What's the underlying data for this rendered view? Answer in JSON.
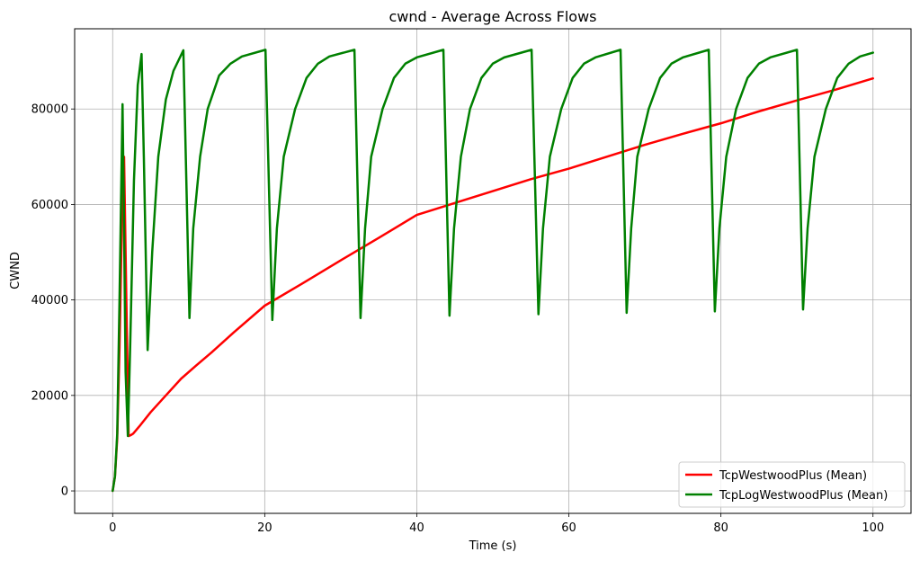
{
  "chart_data": {
    "type": "line",
    "title": "cwnd - Average Across Flows",
    "xlabel": "Time (s)",
    "ylabel": "CWND",
    "xlim": [
      -5,
      105
    ],
    "ylim": [
      -4700,
      96800
    ],
    "grid": true,
    "legend_position": "lower-right",
    "x_ticks": [
      0,
      20,
      40,
      60,
      80,
      100
    ],
    "x_tick_labels": [
      "0",
      "20",
      "40",
      "60",
      "80",
      "100"
    ],
    "y_ticks": [
      0,
      20000,
      40000,
      60000,
      80000
    ],
    "y_tick_labels": [
      "0",
      "20000",
      "40000",
      "60000",
      "80000"
    ],
    "series": [
      {
        "name": "TcpWestwoodPlus (Mean)",
        "color": "#ff0000",
        "x": [
          0,
          0.3,
          0.6,
          0.9,
          1.2,
          1.5,
          1.8,
          2.1,
          2.4,
          2.7,
          3.5,
          5,
          7,
          9,
          11,
          13,
          16,
          20,
          25,
          30,
          35,
          40,
          45,
          50,
          55,
          60,
          65,
          70,
          75,
          80,
          85,
          90,
          95,
          100
        ],
        "y": [
          0,
          3000,
          11000,
          30000,
          55000,
          70000,
          40000,
          11500,
          11700,
          12000,
          13500,
          16500,
          20000,
          23500,
          26300,
          29000,
          33300,
          38800,
          43500,
          48300,
          53000,
          57800,
          60300,
          62800,
          65300,
          67500,
          70000,
          72500,
          74800,
          77000,
          79500,
          81800,
          84000,
          86400
        ]
      },
      {
        "name": "TcpLogWestwoodPlus (Mean)",
        "color": "#008000",
        "x": [
          0,
          0.3,
          0.6,
          0.9,
          1.3,
          1.5,
          1.7,
          2,
          2.3,
          2.8,
          3.3,
          3.8,
          4.1,
          4.6,
          5.2,
          6,
          7,
          8,
          9.3,
          10.1,
          10.6,
          11.5,
          12.5,
          14,
          15.5,
          17,
          20.1,
          21,
          21.6,
          22.5,
          24,
          25.5,
          27,
          28.5,
          31.8,
          32.6,
          33.2,
          34,
          35.5,
          37,
          38.5,
          40,
          43.5,
          44.3,
          44.9,
          45.8,
          47,
          48.5,
          50,
          51.5,
          55.1,
          56,
          56.6,
          57.5,
          59,
          60.5,
          62,
          63.5,
          66.8,
          67.6,
          68.2,
          69,
          70.5,
          72,
          73.5,
          75,
          78.4,
          79.2,
          79.8,
          80.7,
          82,
          83.5,
          85,
          86.5,
          90,
          90.8,
          91.4,
          92.3,
          93.8,
          95.3,
          96.8,
          98.3,
          100
        ],
        "y": [
          0,
          3000,
          12000,
          40000,
          81000,
          55000,
          25000,
          11500,
          30000,
          65000,
          85000,
          91500,
          70000,
          29500,
          50000,
          70000,
          82000,
          88000,
          92300,
          36200,
          55000,
          70000,
          80000,
          87000,
          89500,
          91000,
          92400,
          35800,
          55000,
          70000,
          80000,
          86500,
          89500,
          91000,
          92400,
          36200,
          55000,
          70000,
          80000,
          86500,
          89500,
          90800,
          92400,
          36700,
          55000,
          70000,
          80000,
          86500,
          89500,
          90800,
          92400,
          37000,
          55000,
          70000,
          80000,
          86500,
          89500,
          90800,
          92400,
          37300,
          55000,
          70000,
          80000,
          86500,
          89500,
          90800,
          92400,
          37600,
          55000,
          70000,
          80000,
          86500,
          89500,
          90800,
          92400,
          38000,
          55000,
          70000,
          80000,
          86500,
          89500,
          91000,
          91800
        ]
      }
    ]
  }
}
